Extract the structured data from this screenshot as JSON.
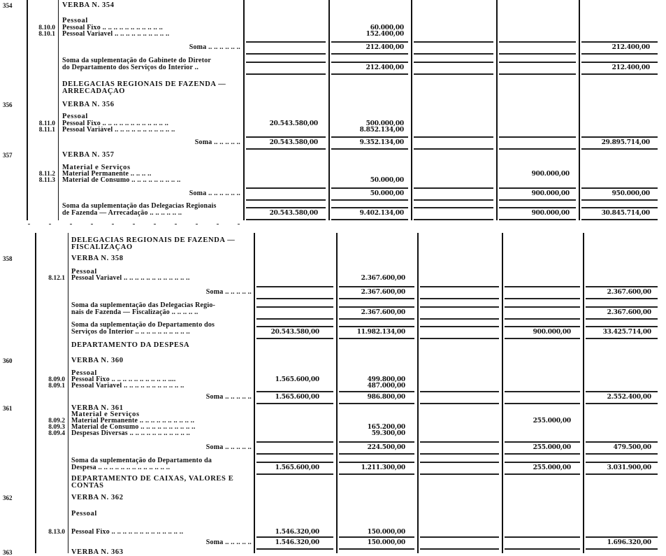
{
  "column_count": 5,
  "rows": [
    {
      "verba": "354",
      "text": [
        "VERBA N. 354"
      ],
      "kind": "head",
      "values": [
        null,
        null,
        null,
        null,
        null
      ]
    },
    {
      "text": [
        "Pessoal"
      ],
      "kind": "head",
      "values": [
        null,
        null,
        null,
        null,
        null
      ]
    },
    {
      "code": "8.10.0",
      "text": [
        "Pessoal Fixo .. .. .. .. .. .. .. .. .. ..  .."
      ],
      "values": [
        null,
        "60.000,00",
        null,
        null,
        null
      ]
    },
    {
      "code": "8.10.1",
      "text": [
        "Pessoal Variavel .. .. .. .. .. .. .. .. .. .."
      ],
      "values": [
        null,
        "152.400,00",
        null,
        null,
        null
      ]
    },
    {
      "text": [
        "Soma .. .. .. .. .. .."
      ],
      "kind": "soma",
      "values": [
        null,
        "212.400,00",
        null,
        null,
        "212.400,00"
      ]
    },
    {
      "text": [
        "Soma da suplementação do Gabinete do Diretor",
        "do Departamento dos Serviços do Interior .."
      ],
      "kind": "total",
      "values": [
        null,
        "212.400,00",
        null,
        null,
        "212.400,00"
      ]
    },
    {
      "text": [
        "DELEGACIAS REGIONAIS DE FAZENDA —",
        "ARRECADAÇÃO"
      ],
      "kind": "section",
      "values": [
        null,
        null,
        null,
        null,
        null
      ]
    },
    {
      "verba": "356",
      "text": [
        "VERBA N. 356"
      ],
      "kind": "head",
      "values": [
        null,
        null,
        null,
        null,
        null
      ]
    },
    {
      "text": [
        "Pessoal"
      ],
      "kind": "head",
      "values": [
        null,
        null,
        null,
        null,
        null
      ]
    },
    {
      "code": "8.11.0",
      "text": [
        "Pessoal Fixo .. .. .. .. .. .. .. .. .. .. .. .."
      ],
      "values": [
        "20.543.580,00",
        "500.000,00",
        null,
        null,
        null
      ]
    },
    {
      "code": "8.11.1",
      "text": [
        "Pessoal Variável .. .. .. .. .. .. .. .. .. .. .."
      ],
      "values": [
        null,
        "8.852.134,00",
        null,
        null,
        null
      ]
    },
    {
      "text": [
        "Soma .. .. .. .. .."
      ],
      "kind": "soma",
      "values": [
        "20.543.580,00",
        "9.352.134,00",
        null,
        null,
        "29.895.714,00"
      ]
    },
    {
      "verba": "357",
      "text": [
        "VERBA N. 357"
      ],
      "kind": "head",
      "values": [
        null,
        null,
        null,
        null,
        null
      ]
    },
    {
      "text": [
        "Material e Serviços"
      ],
      "kind": "head",
      "values": [
        null,
        null,
        null,
        null,
        null
      ]
    },
    {
      "code": "8.11.2",
      "text": [
        "Material Permanente .. ..              .. .."
      ],
      "values": [
        null,
        null,
        null,
        "900.000,00",
        null
      ]
    },
    {
      "code": "8.11.3",
      "text": [
        "Material de Consumo .. .. .. .. .. .. .. .. .."
      ],
      "values": [
        null,
        "50.000,00",
        null,
        null,
        null
      ]
    },
    {
      "text": [
        "Soma .. .. .. .. .. .."
      ],
      "kind": "soma",
      "values": [
        null,
        "50.000,00",
        null,
        "900.000,00",
        "950.000,00"
      ]
    },
    {
      "text": [
        "Soma da suplementação das Delegacias Regionais",
        "de Fazenda — Arrecadação .. .. .. .. .. .."
      ],
      "kind": "total",
      "values": [
        "20.543.580,00",
        "9.402.134,00",
        null,
        "900.000,00",
        "30.845.714,00"
      ]
    },
    {
      "text": [
        "DELEGACIAS REGIONAIS DE FAZENDA —",
        "FISCALIZAÇÃO"
      ],
      "kind": "section",
      "values": [
        null,
        null,
        null,
        null,
        null
      ]
    },
    {
      "verba": "358",
      "text": [
        "VERBA N. 358"
      ],
      "kind": "head",
      "values": [
        null,
        null,
        null,
        null,
        null
      ]
    },
    {
      "text": [
        "Pessoal"
      ],
      "kind": "head",
      "values": [
        null,
        null,
        null,
        null,
        null
      ]
    },
    {
      "code": "8.12.1",
      "text": [
        "Pessoal Variavel .. .. .. .. .. .. .. .. .. .. .. .."
      ],
      "values": [
        null,
        "2.367.600,00",
        null,
        null,
        null
      ]
    },
    {
      "text": [
        "Soma .. .. .. .. .."
      ],
      "kind": "soma",
      "values": [
        null,
        "2.367.600,00",
        null,
        null,
        "2.367.600,00"
      ]
    },
    {
      "text": [
        "Soma da suplementação das Delegacias Regio-",
        "nais de Fazenda — Fiscalização .. .. .. .. .."
      ],
      "kind": "total",
      "values": [
        null,
        "2.367.600,00",
        null,
        null,
        "2.367.600,00"
      ]
    },
    {
      "text": [
        "Soma da suplementação do Departamento dos",
        "Serviços do Interior .. .. .. .. .. .. .. .. .. .."
      ],
      "kind": "total",
      "values": [
        "20.543.580,00",
        "11.982.134,00",
        null,
        "900.000,00",
        "33.425.714,00"
      ]
    },
    {
      "text": [
        "DEPARTAMENTO DA DESPESA"
      ],
      "kind": "section",
      "values": [
        null,
        null,
        null,
        null,
        null
      ]
    },
    {
      "verba": "360",
      "text": [
        "VERBA N. 360"
      ],
      "kind": "head",
      "values": [
        null,
        null,
        null,
        null,
        null
      ]
    },
    {
      "text": [
        "Pessoal"
      ],
      "kind": "head",
      "values": [
        null,
        null,
        null,
        null,
        null
      ]
    },
    {
      "code": "8.09.0",
      "text": [
        "Pessoal Fixo .. .. .. .. .. .. .. .. .. .. ...."
      ],
      "values": [
        "1.565.600,00",
        "499.800,00",
        null,
        null,
        null
      ]
    },
    {
      "code": "8.09.1",
      "text": [
        "Pessoal Variavel .. .. .. .. .. .. .. .. .. .. .."
      ],
      "values": [
        null,
        "487.000,00",
        null,
        null,
        null
      ]
    },
    {
      "text": [
        "Soma .. .. .. .. .."
      ],
      "kind": "soma",
      "values": [
        "1.565.600,00",
        "986.800,00",
        null,
        null,
        "2.552.400,00"
      ]
    },
    {
      "verba": "361",
      "text": [
        "VERBA N. 361"
      ],
      "kind": "head",
      "values": [
        null,
        null,
        null,
        null,
        null
      ]
    },
    {
      "text": [
        "Material e Serviços"
      ],
      "kind": "head",
      "values": [
        null,
        null,
        null,
        null,
        null
      ]
    },
    {
      "code": "8.09.2",
      "text": [
        "Material Permanente .. .. .. .. .. .. .. .. .. .."
      ],
      "values": [
        null,
        null,
        null,
        "255.000,00",
        null
      ]
    },
    {
      "code": "8.09.3",
      "text": [
        "Material de Consumo .. .. .. .. .. .. .. .. .. .."
      ],
      "values": [
        null,
        "165.200,00",
        null,
        null,
        null
      ]
    },
    {
      "code": "8.09.4",
      "text": [
        "Despesas Diversas .. .. .. .. .. .. .. .. .. .. .."
      ],
      "values": [
        null,
        "59.300,00",
        null,
        null,
        null
      ]
    },
    {
      "text": [
        "Soma .. .. .. .. .."
      ],
      "kind": "soma",
      "values": [
        null,
        "224.500,00",
        null,
        "255.000,00",
        "479.500,00"
      ]
    },
    {
      "text": [
        "Soma da suplementação do Departamento da",
        "Despesa .. .. .. .. .. .. .. .. .. .. .. .. .."
      ],
      "kind": "total",
      "values": [
        "1.565.600,00",
        "1.211.300,00",
        null,
        "255.000,00",
        "3.031.900,00"
      ]
    },
    {
      "text": [
        "DEPARTAMENTO DE CAIXAS, VALORES E",
        "CONTAS"
      ],
      "kind": "section",
      "values": [
        null,
        null,
        null,
        null,
        null
      ]
    },
    {
      "verba": "362",
      "text": [
        "VERBA N. 362"
      ],
      "kind": "head",
      "values": [
        null,
        null,
        null,
        null,
        null
      ]
    },
    {
      "text": [
        "Pessoal"
      ],
      "kind": "head",
      "values": [
        null,
        null,
        null,
        null,
        null
      ]
    },
    {
      "code": "8.13.0",
      "text": [
        "Pessoal Fixo .. .. .. .. .. .. .. .. .. .. .. .. .."
      ],
      "values": [
        "1.546.320,00",
        "150.000,00",
        null,
        null,
        null
      ]
    },
    {
      "text": [
        "Soma .. .. .. .. .."
      ],
      "kind": "soma",
      "values": [
        "1.546.320,00",
        "150.000,00",
        null,
        null,
        "1.696.320,00"
      ]
    },
    {
      "verba": "363",
      "text": [
        "VERBA N. 363"
      ],
      "kind": "head",
      "values": [
        null,
        null,
        null,
        null,
        null
      ]
    }
  ]
}
